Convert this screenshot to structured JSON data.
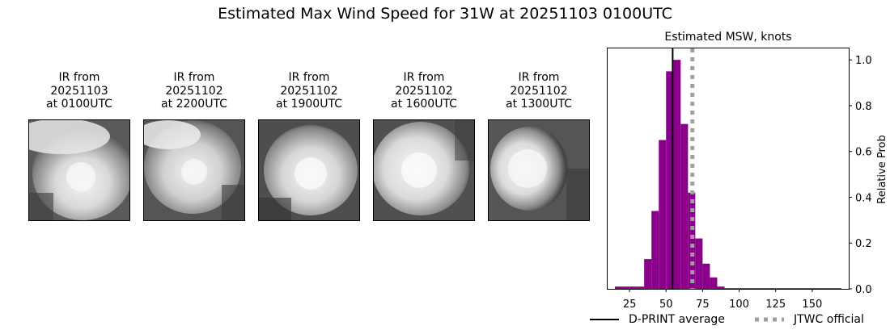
{
  "title": "Estimated Max Wind Speed for 31W at 20251103 0100UTC",
  "ir_panels": [
    {
      "caption": "IR from\n20251103\nat 0100UTC"
    },
    {
      "caption": "IR from\n20251102\nat 2200UTC"
    },
    {
      "caption": "IR from\n20251102\nat 1900UTC"
    },
    {
      "caption": "IR from\n20251102\nat 1600UTC"
    },
    {
      "caption": "IR from\n20251102\nat 1300UTC"
    }
  ],
  "chart_data": {
    "type": "bar",
    "title": "Estimated MSW, knots",
    "xlabel": "",
    "ylabel": "Relative Prob",
    "xlim": [
      10,
      175
    ],
    "ylim": [
      0,
      1.05
    ],
    "xticks": [
      25,
      50,
      75,
      100,
      125,
      150
    ],
    "yticks": [
      0.0,
      0.2,
      0.4,
      0.6,
      0.8,
      1.0
    ],
    "bin_width": 5,
    "bins": [
      15,
      20,
      25,
      30,
      35,
      40,
      45,
      50,
      55,
      60,
      65,
      70,
      75,
      80,
      85,
      90,
      95,
      100,
      105,
      110,
      115,
      120,
      125,
      130,
      135,
      140,
      145,
      150,
      155,
      160,
      165
    ],
    "values": [
      0.01,
      0.01,
      0.01,
      0.01,
      0.13,
      0.34,
      0.65,
      0.95,
      1.0,
      0.72,
      0.42,
      0.22,
      0.11,
      0.05,
      0.01,
      0.003,
      0.003,
      0.003,
      0.003,
      0.003,
      0.003,
      0.003,
      0.003,
      0.003,
      0.003,
      0.003,
      0.003,
      0.003,
      0.003,
      0.003,
      0.003
    ],
    "bar_color": "#8b008b",
    "dprint_average": 54.5,
    "jtwc_official": 68,
    "legend": [
      {
        "label": "D-PRINT average",
        "color": "#000000",
        "style": "solid"
      },
      {
        "label": "JTWC official",
        "color": "#a0a0a0",
        "style": "dotted"
      }
    ],
    "legend_position": "bottom"
  }
}
